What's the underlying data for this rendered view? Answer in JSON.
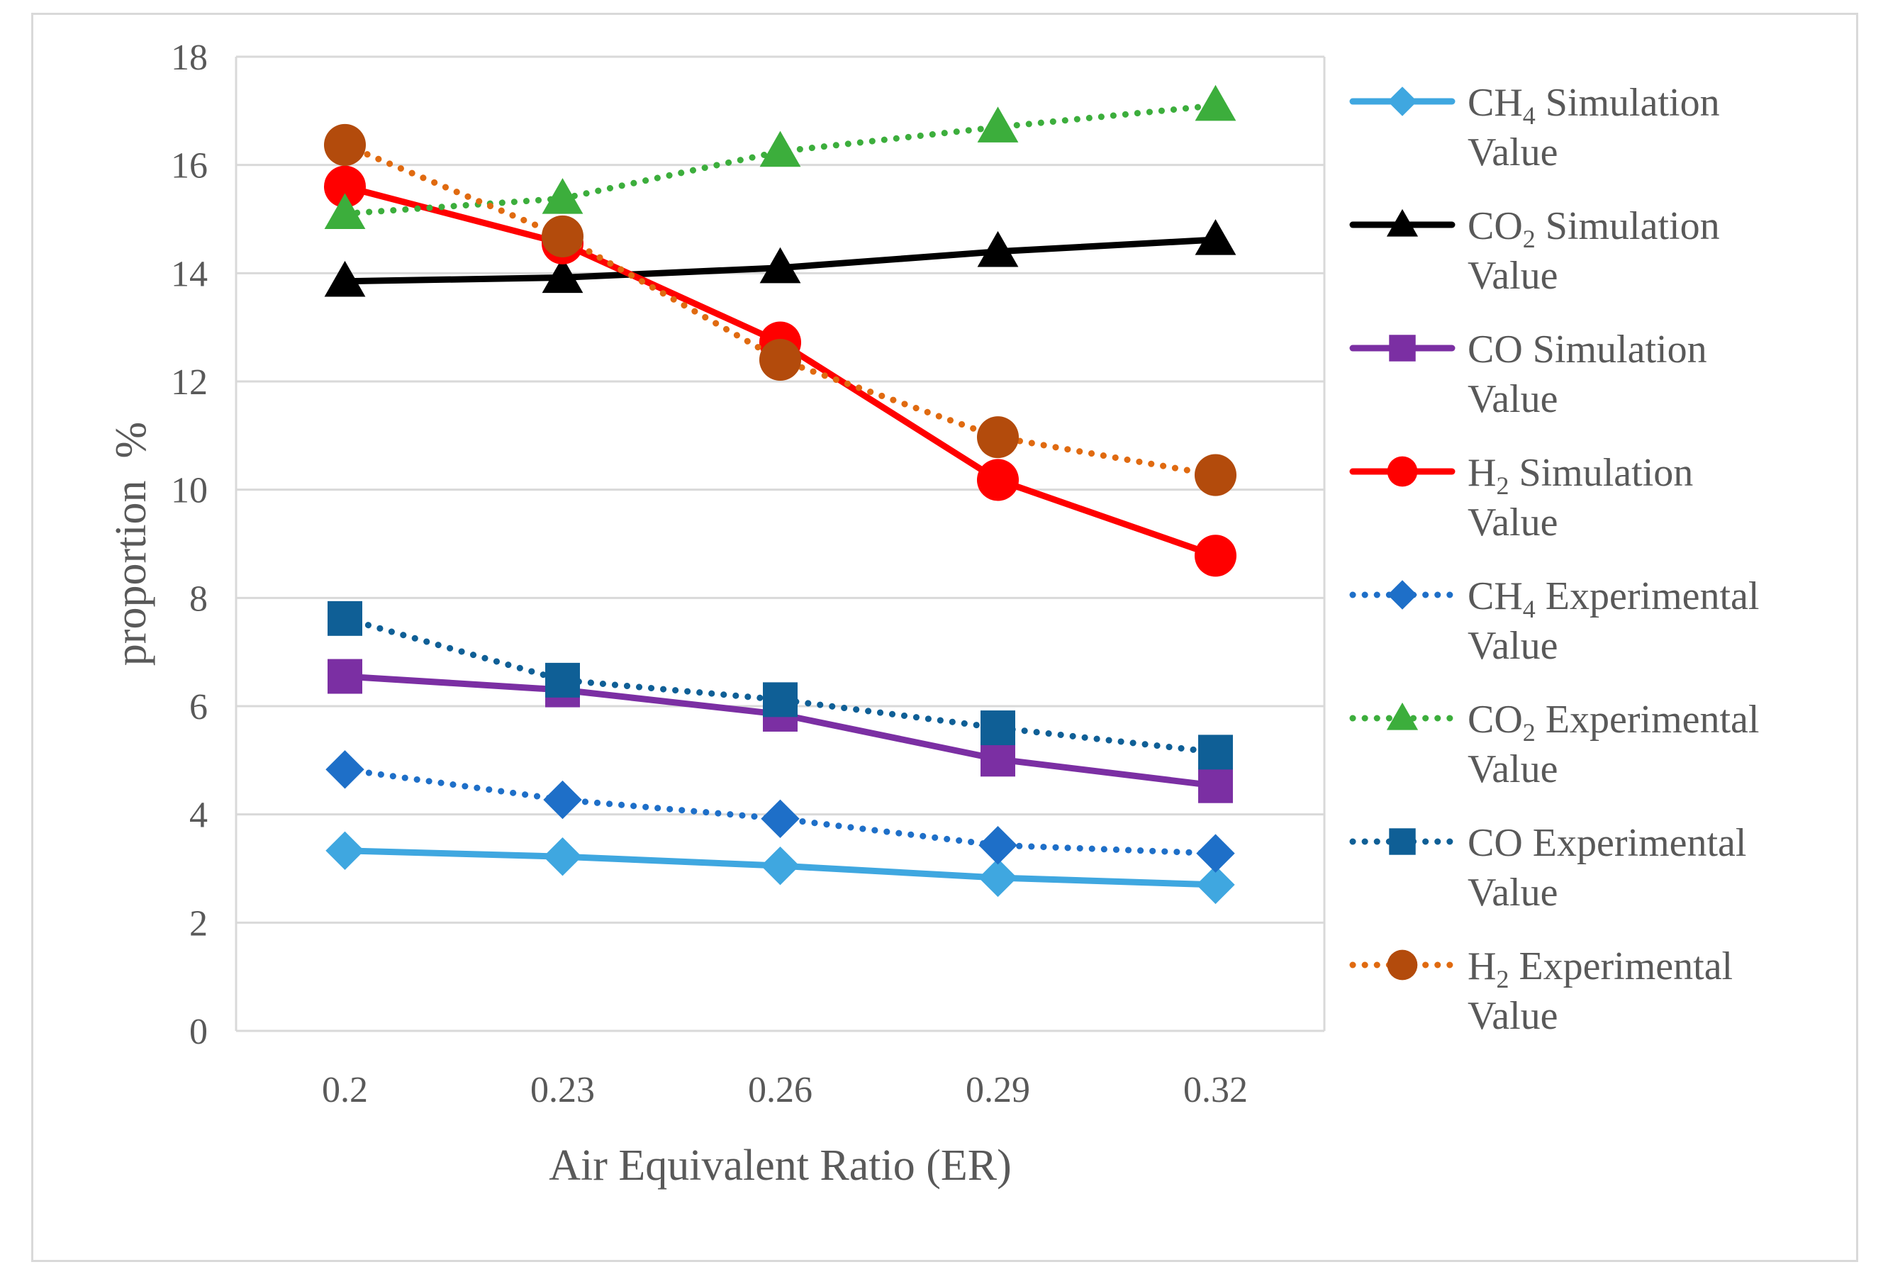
{
  "chart_data": {
    "type": "line",
    "xlabel": "Air Equivalent Ratio (ER)",
    "ylabel": "proportion  %",
    "categories": [
      "0.2",
      "0.23",
      "0.26",
      "0.29",
      "0.32"
    ],
    "yticks": [
      "0",
      "2",
      "4",
      "6",
      "8",
      "10",
      "12",
      "14",
      "16",
      "18"
    ],
    "ylim": [
      0,
      18
    ],
    "grid": "horizontal",
    "legend_position": "right",
    "series": [
      {
        "name_main": "CH",
        "name_sub": "4",
        "name_rest": " Simulation",
        "name_line2": "Value",
        "values": [
          3.33,
          3.22,
          3.05,
          2.83,
          2.7
        ],
        "color": "#3fa7e0",
        "dash": "solid",
        "marker": "diamond"
      },
      {
        "name_main": "CO",
        "name_sub": "2",
        "name_rest": " Simulation",
        "name_line2": "Value",
        "values": [
          13.85,
          13.92,
          14.1,
          14.4,
          14.62
        ],
        "color": "#000000",
        "dash": "solid",
        "marker": "triangle"
      },
      {
        "name_main": "CO",
        "name_sub": "",
        "name_rest": " Simulation",
        "name_line2": "Value",
        "values": [
          6.55,
          6.3,
          5.85,
          5.02,
          4.53
        ],
        "color": "#7b2fa3",
        "dash": "solid",
        "marker": "square"
      },
      {
        "name_main": "H",
        "name_sub": "2",
        "name_rest": " Simulation",
        "name_line2": "Value",
        "values": [
          15.6,
          14.55,
          12.72,
          10.18,
          8.78
        ],
        "color": "#ff0000",
        "dash": "solid",
        "marker": "circle"
      },
      {
        "name_main": "CH",
        "name_sub": "4",
        "name_rest": " Experimental",
        "name_line2": "Value",
        "values": [
          4.83,
          4.27,
          3.92,
          3.43,
          3.28
        ],
        "color": "#1e6fc8",
        "dash": "dotted",
        "marker": "diamond"
      },
      {
        "name_main": "CO",
        "name_sub": "2",
        "name_rest": " Experimental",
        "name_line2": "Value",
        "values": [
          15.1,
          15.38,
          16.25,
          16.7,
          17.1
        ],
        "color": "#3cae3c",
        "dash": "dotted",
        "marker": "triangle"
      },
      {
        "name_main": "CO",
        "name_sub": "",
        "name_rest": " Experimental",
        "name_line2": "Value",
        "values": [
          7.62,
          6.48,
          6.12,
          5.6,
          5.15
        ],
        "color": "#0f5f96",
        "dash": "dotted",
        "marker": "square"
      },
      {
        "name_main": "H",
        "name_sub": "2",
        "name_rest": " Experimental",
        "name_line2": "Value",
        "values": [
          16.37,
          14.68,
          12.4,
          10.97,
          10.27
        ],
        "color": "#e06a10",
        "marker_color": "#b34b0c",
        "dash": "dotted",
        "marker": "circle"
      }
    ]
  }
}
